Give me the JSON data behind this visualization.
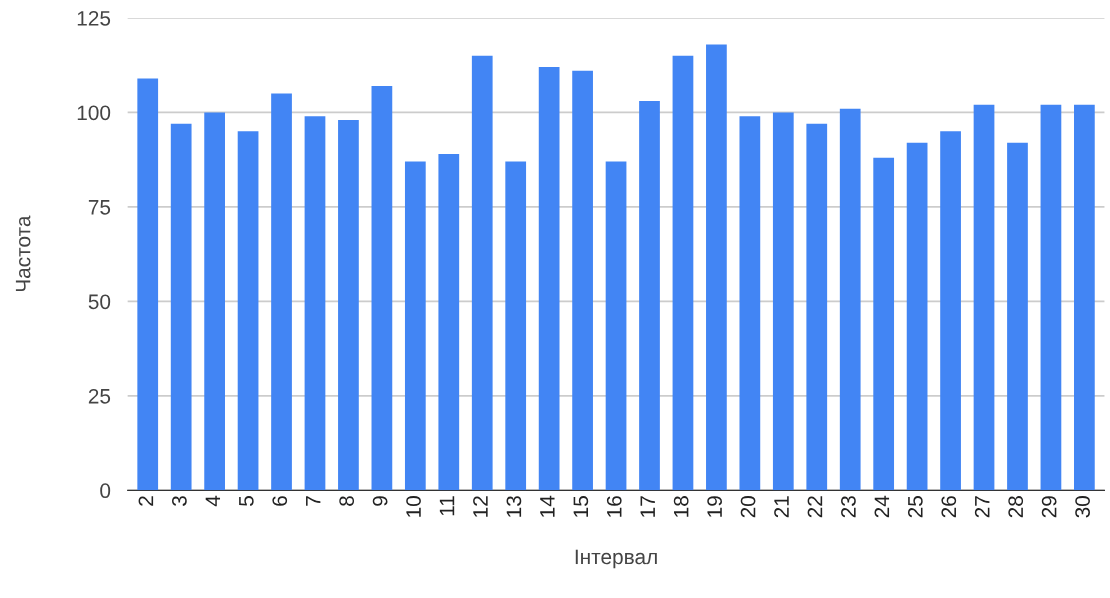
{
  "chart_data": {
    "type": "bar",
    "xlabel": "Інтервал",
    "ylabel": "Частота",
    "categories": [
      "2",
      "3",
      "4",
      "5",
      "6",
      "7",
      "8",
      "9",
      "10",
      "11",
      "12",
      "13",
      "14",
      "15",
      "16",
      "17",
      "18",
      "19",
      "20",
      "21",
      "22",
      "23",
      "24",
      "25",
      "26",
      "27",
      "28",
      "29",
      "30"
    ],
    "values": [
      109,
      97,
      100,
      95,
      105,
      99,
      98,
      107,
      87,
      89,
      115,
      87,
      112,
      111,
      87,
      103,
      115,
      118,
      99,
      100,
      97,
      101,
      88,
      92,
      95,
      102,
      92,
      102,
      102
    ],
    "color": "#4285f4",
    "ylim": [
      0,
      125
    ],
    "yticks": [
      0,
      25,
      50,
      75,
      100,
      125
    ],
    "grid": "y"
  }
}
